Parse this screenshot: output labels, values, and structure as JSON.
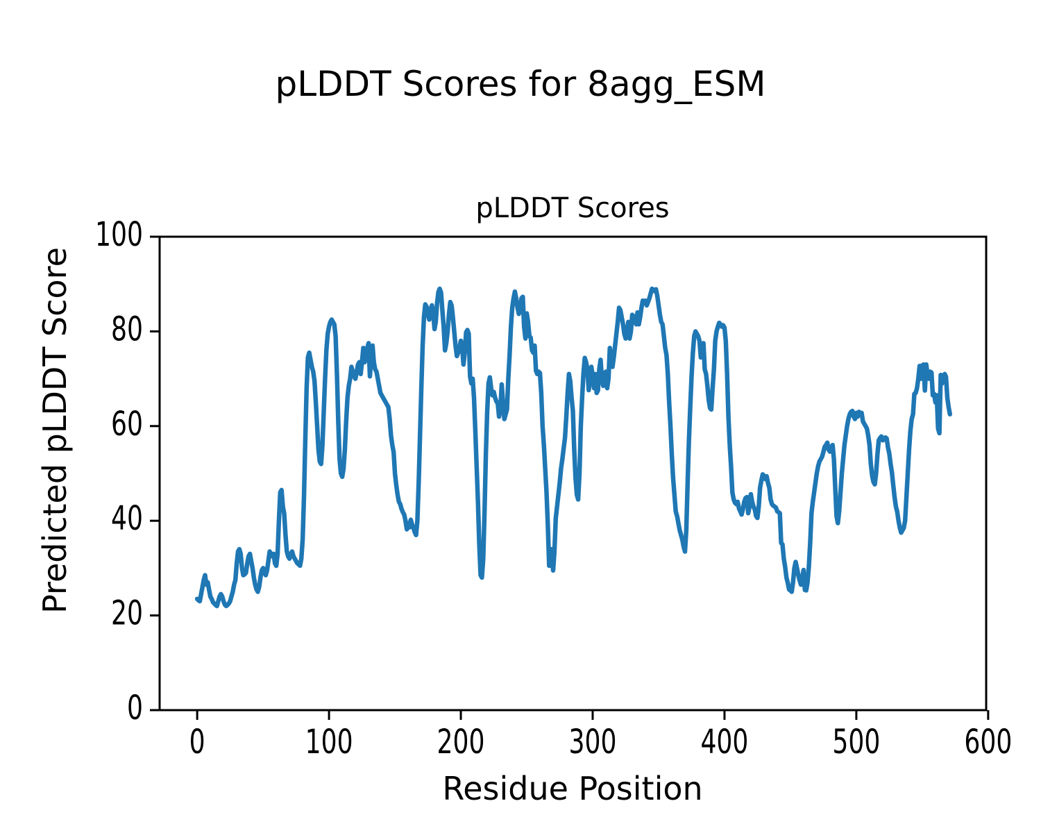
{
  "figure": {
    "title": "pLDDT Scores for 8agg_ESM"
  },
  "chart_data": {
    "type": "line",
    "title": "pLDDT Scores",
    "xlabel": "Residue Position",
    "ylabel": "Predicted pLDDT Score",
    "x_ticks": [
      0,
      100,
      200,
      300,
      400,
      500,
      600
    ],
    "y_ticks": [
      0,
      20,
      40,
      60,
      80,
      100
    ],
    "xlim": [
      -28.5,
      598.5
    ],
    "ylim": [
      0,
      100
    ],
    "grid": false,
    "legend": false,
    "background": "#ffffff",
    "line_color": "#1f77b4",
    "series": [
      {
        "name": "pLDDT",
        "x_start": 0,
        "x_step": 1,
        "values": [
          23.5,
          23.2,
          23,
          24.5,
          26,
          27.5,
          28.5,
          26.5,
          27,
          25.5,
          24,
          23.5,
          22.8,
          22.5,
          22.2,
          22,
          23,
          24,
          24.5,
          24,
          23,
          22.3,
          22,
          22.2,
          22.5,
          23,
          24,
          25,
          26.5,
          27.5,
          31,
          33.5,
          34,
          33,
          30,
          28.5,
          28.7,
          29,
          31,
          32.5,
          33,
          31.5,
          30,
          28,
          26.5,
          25.5,
          25,
          26,
          28,
          29.5,
          30,
          29,
          28.5,
          29.5,
          31.5,
          33.5,
          33,
          32.5,
          33,
          31,
          30.5,
          33,
          40,
          46,
          46.5,
          43,
          41.5,
          37,
          33.5,
          32.5,
          32,
          33,
          33.5,
          32.5,
          32,
          31.5,
          31,
          30.8,
          30.5,
          32,
          36,
          45,
          57,
          68,
          74.5,
          75.5,
          74,
          72.5,
          71.5,
          69.5,
          65,
          60,
          55,
          52.5,
          52,
          56,
          63,
          70,
          76,
          79.5,
          81,
          82,
          82.5,
          82,
          81.5,
          79,
          71,
          61,
          53,
          50,
          49.3,
          51,
          55,
          61,
          66,
          68.5,
          70,
          72.5,
          71.5,
          70.5,
          70,
          71.5,
          73,
          73.5,
          71,
          73.5,
          76.5,
          73.5,
          74.5,
          76.5,
          77.5,
          70.5,
          74.5,
          77,
          73.5,
          72,
          71.5,
          70,
          68.5,
          67,
          66.5,
          66,
          65.5,
          65,
          64.5,
          64,
          61.5,
          58,
          56,
          54.5,
          50,
          47.5,
          45.5,
          44,
          43.5,
          42.5,
          41.8,
          41.3,
          40,
          38.2,
          39.5,
          38.6,
          40.2,
          39.2,
          38.5,
          37.6,
          37,
          40,
          48,
          58,
          68,
          77,
          83,
          85.7,
          85.2,
          83.5,
          82.5,
          84.5,
          85.5,
          84,
          80.5,
          82,
          86,
          88.3,
          89,
          88.2,
          84.5,
          81,
          76,
          77.5,
          80,
          83.5,
          86.2,
          85.5,
          83,
          80,
          77,
          74.8,
          75.5,
          76.5,
          78,
          77,
          73,
          75.5,
          79.8,
          80.3,
          79.5,
          70.5,
          69,
          70,
          66,
          59,
          51.5,
          44,
          35,
          28.5,
          28,
          32,
          42,
          54,
          63,
          69,
          70.3,
          68,
          66.5,
          67.2,
          66,
          65.2,
          64.8,
          62,
          63.5,
          68.8,
          65,
          61.5,
          62.5,
          63.5,
          70,
          75,
          81,
          85,
          87,
          88.4,
          87,
          85,
          83.7,
          84.5,
          87,
          87.3,
          81,
          78.5,
          83.8,
          82,
          79,
          78.7,
          76,
          75.5,
          77,
          71.7,
          71,
          71.5,
          71.2,
          67,
          60,
          56,
          51,
          46,
          39,
          30.5,
          32.5,
          34,
          29.5,
          33.5,
          40.5,
          43,
          45.5,
          48,
          51,
          53,
          55.3,
          57.5,
          62,
          67,
          71,
          69.5,
          66,
          63.2,
          55,
          49,
          45.5,
          44.5,
          50,
          60,
          66,
          71,
          74.4,
          73.5,
          72,
          67.6,
          70,
          72.5,
          70.5,
          68,
          71,
          67,
          67.5,
          72,
          74,
          70,
          68.5,
          70.5,
          71.5,
          68,
          70,
          76.5,
          74,
          72.5,
          74.5,
          77,
          79.5,
          82,
          85,
          84.5,
          83,
          81.5,
          79.5,
          78.5,
          80,
          82,
          78.5,
          80,
          83.5,
          83.2,
          82.5,
          81.5,
          84,
          81.5,
          83,
          85,
          86.5,
          86,
          86.5,
          85.5,
          86.2,
          87,
          88,
          89,
          88.8,
          88.5,
          88.9,
          87.5,
          85.5,
          83.5,
          82,
          81.5,
          79,
          76.5,
          75,
          71,
          65,
          60,
          54,
          49,
          45.5,
          42,
          41,
          39.5,
          38,
          37,
          36,
          34.5,
          33.5,
          38,
          48,
          57,
          64,
          70.5,
          75.5,
          79,
          80,
          79.5,
          79,
          78,
          74.5,
          76,
          77.5,
          72,
          71,
          68.5,
          65.5,
          63.8,
          63.5,
          68,
          72,
          78,
          80,
          81,
          81.8,
          81.5,
          81,
          81.3,
          80.8,
          78,
          71,
          62,
          56,
          51.5,
          46,
          44.5,
          43.8,
          43.5,
          44,
          42.6,
          42,
          41.3,
          42.5,
          44,
          44.8,
          45,
          41.6,
          43,
          45.6,
          44,
          43,
          42.4,
          41,
          40.6,
          43,
          47,
          48.5,
          49.8,
          49.5,
          48.8,
          49.4,
          48,
          47,
          44.5,
          43.5,
          43.2,
          43,
          42.8,
          42,
          41.8,
          41.6,
          35.3,
          35,
          32,
          30.3,
          28,
          26.9,
          25.5,
          25.3,
          25,
          27,
          30,
          31.3,
          30,
          28.5,
          27.4,
          26.5,
          28,
          29.6,
          25.4,
          25.3,
          27,
          30.3,
          35.3,
          41.6,
          44,
          46,
          48,
          50,
          51.5,
          52.5,
          53,
          53.5,
          54.5,
          55.6,
          56,
          56.5,
          55,
          54.6,
          55.5,
          56,
          53,
          47,
          41,
          39.5,
          42,
          46,
          50,
          53,
          56,
          58,
          60,
          61.5,
          62.5,
          63,
          63.2,
          62,
          61.5,
          62.8,
          62,
          63,
          62.5,
          62.8,
          61,
          60.5,
          60,
          59.5,
          58,
          56,
          52,
          49.5,
          48.2,
          47.7,
          50,
          54,
          57,
          57.5,
          57.8,
          57,
          57.2,
          57.6,
          57.4,
          55.5,
          54.2,
          52,
          50.2,
          47.5,
          45,
          43,
          41.9,
          40,
          38.5,
          37.5,
          38,
          38.5,
          40,
          45,
          50,
          55,
          59,
          61.5,
          62.5,
          66.8,
          67,
          68,
          70,
          72.7,
          70,
          72.8,
          73,
          67.5,
          73,
          71,
          70,
          71.5,
          71.3,
          66.5,
          66.8,
          65,
          66.5,
          59.5,
          58.5,
          70.8,
          69,
          70,
          71,
          70.4,
          66,
          64,
          62.5
        ]
      }
    ]
  }
}
